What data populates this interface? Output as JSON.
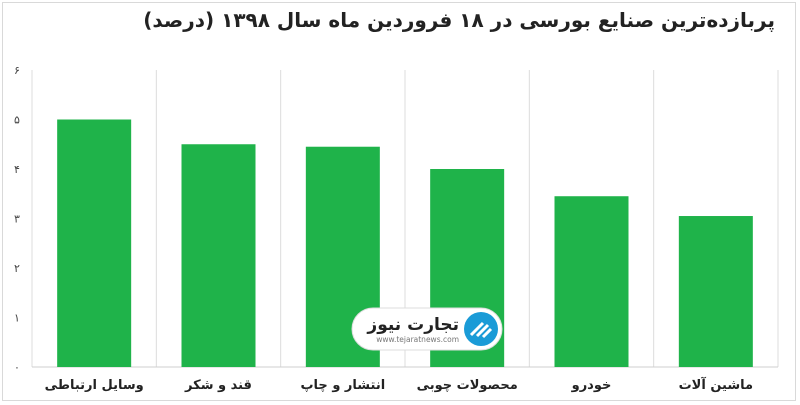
{
  "chart_data": {
    "type": "bar",
    "title": "پربازده‌ترین صنایع بورسی در ۱۸ فروردین ماه سال ۱۳۹۸ (درصد)",
    "categories": [
      "وسایل ارتباطی",
      "قند و شکر",
      "انتشار و چاپ",
      "محصولات چوبی",
      "خودرو",
      "ماشین آلات"
    ],
    "values": [
      5.0,
      4.5,
      4.45,
      4.0,
      3.45,
      3.05
    ],
    "yticks": [
      "۰",
      "۱",
      "۲",
      "۳",
      "۴",
      "۵",
      "۶"
    ],
    "ylim": [
      0,
      6
    ],
    "grid": "vertical",
    "bar_color": "#1fb34a",
    "grid_color": "#dcdcdc"
  },
  "watermark": {
    "name": "تجارت نیوز",
    "url": "www.tejaratnews.com",
    "accent": "#1a9bd7"
  }
}
